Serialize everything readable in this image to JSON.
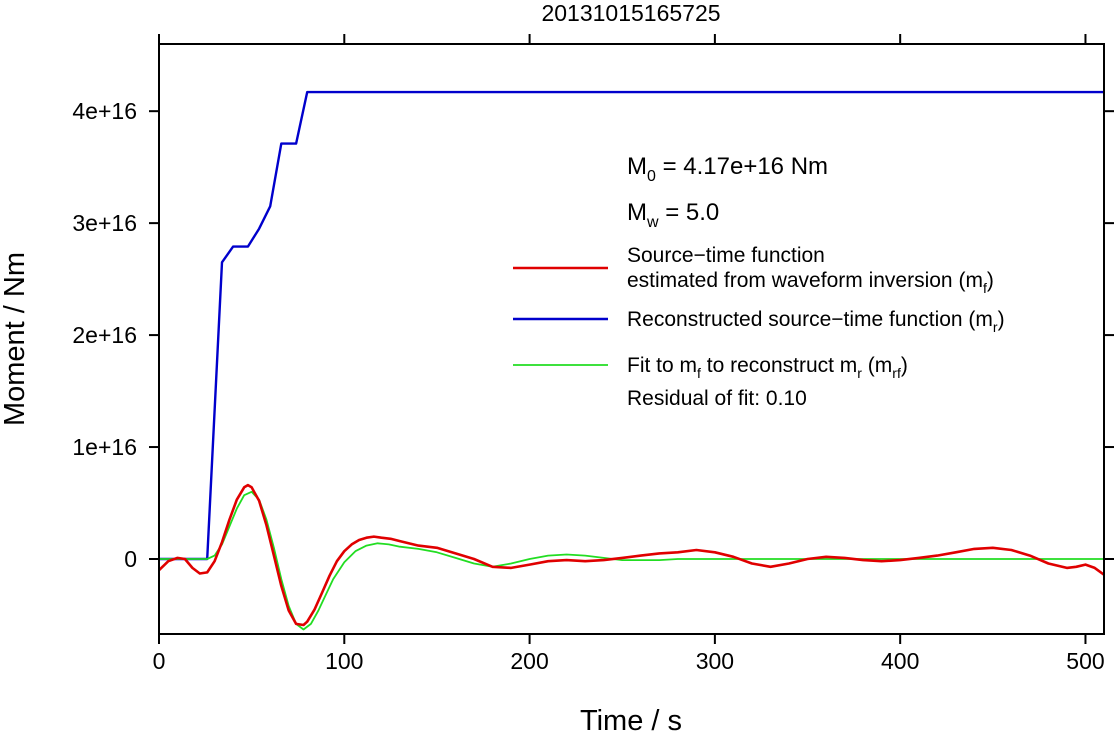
{
  "chart_data": {
    "type": "line",
    "title": "20131015165725",
    "xlabel": "Time / s",
    "ylabel": "Moment / Nm",
    "xlim": [
      0,
      510
    ],
    "ylim": [
      -6700000000000000.0,
      4.6e+16
    ],
    "xticks": [
      0,
      100,
      200,
      300,
      400,
      500
    ],
    "yticks": [
      0,
      1e+16,
      2e+16,
      3e+16,
      4e+16
    ],
    "xtick_labels": [
      "0",
      "100",
      "200",
      "300",
      "400",
      "500"
    ],
    "ytick_labels": [
      "0",
      "1e+16",
      "2e+16",
      "3e+16",
      "4e+16"
    ],
    "grid": false,
    "annotations": {
      "m0": {
        "prefix": "M",
        "sub": "0",
        "rest": " = 4.17e+16 Nm"
      },
      "mw": {
        "prefix": "M",
        "sub": "w",
        "rest": " = 5.0"
      },
      "residual": "Residual of fit: 0.10"
    },
    "series": [
      {
        "name": "Source−time function estimated from waveform inversion (mf)",
        "legend_lines": [
          [
            {
              "t": "Source−time function"
            }
          ],
          [
            {
              "t": "estimated from waveform inversion (m"
            },
            {
              "t": "f",
              "sub": true
            },
            {
              "t": ")"
            }
          ]
        ],
        "color": "#e00000",
        "stroke_width": 2.6,
        "x": [
          0,
          5,
          10,
          14,
          18,
          22,
          26,
          30,
          34,
          38,
          42,
          46,
          48,
          50,
          54,
          58,
          62,
          66,
          70,
          74,
          78,
          80,
          84,
          88,
          92,
          96,
          100,
          104,
          108,
          112,
          116,
          120,
          125,
          130,
          140,
          150,
          160,
          170,
          180,
          190,
          200,
          210,
          220,
          230,
          240,
          250,
          260,
          270,
          280,
          290,
          300,
          310,
          320,
          330,
          340,
          350,
          360,
          370,
          380,
          390,
          400,
          410,
          420,
          430,
          440,
          450,
          460,
          470,
          480,
          490,
          495,
          500,
          505,
          510
        ],
        "y": [
          -1000000000000000.0,
          -200000000000000.0,
          100000000000000.0,
          0,
          -800000000000000.0,
          -1300000000000000.0,
          -1200000000000000.0,
          -200000000000000.0,
          1500000000000000.0,
          3500000000000000.0,
          5300000000000000.0,
          6400000000000000.0,
          6600000000000000.0,
          6400000000000000.0,
          5200000000000000.0,
          3000000000000000.0,
          300000000000000.0,
          -2400000000000000.0,
          -4600000000000000.0,
          -5800000000000000.0,
          -5900000000000000.0,
          -5600000000000000.0,
          -4500000000000000.0,
          -3000000000000000.0,
          -1500000000000000.0,
          -200000000000000.0,
          700000000000000.0,
          1300000000000000.0,
          1700000000000000.0,
          1900000000000000.0,
          2000000000000000.0,
          1900000000000000.0,
          1800000000000000.0,
          1600000000000000.0,
          1200000000000000.0,
          1000000000000000.0,
          500000000000000.0,
          0,
          -700000000000000.0,
          -800000000000000.0,
          -500000000000000.0,
          -200000000000000.0,
          -100000000000000.0,
          -200000000000000.0,
          -100000000000000.0,
          100000000000000.0,
          300000000000000.0,
          500000000000000.0,
          600000000000000.0,
          800000000000000.0,
          600000000000000.0,
          200000000000000.0,
          -400000000000000.0,
          -700000000000000.0,
          -400000000000000.0,
          0,
          200000000000000.0,
          100000000000000.0,
          -100000000000000.0,
          -200000000000000.0,
          -100000000000000.0,
          100000000000000.0,
          300000000000000.0,
          600000000000000.0,
          900000000000000.0,
          1000000000000000.0,
          800000000000000.0,
          300000000000000.0,
          -400000000000000.0,
          -800000000000000.0,
          -700000000000000.0,
          -500000000000000.0,
          -800000000000000.0,
          -1400000000000000.0
        ]
      },
      {
        "name": "Reconstructed source−time function (mr)",
        "legend_lines": [
          [
            {
              "t": "Reconstructed source−time function (m"
            },
            {
              "t": "r",
              "sub": true
            },
            {
              "t": ")"
            }
          ]
        ],
        "color": "#0000cc",
        "stroke_width": 2.4,
        "x": [
          0,
          26,
          34,
          40,
          48,
          54,
          60,
          66,
          74,
          80,
          510
        ],
        "y": [
          0,
          0,
          2.65e+16,
          2.79e+16,
          2.79e+16,
          2.95e+16,
          3.15e+16,
          3.71e+16,
          3.71e+16,
          4.17e+16,
          4.17e+16
        ]
      },
      {
        "name": "Fit to mf to reconstruct mr (mrf)",
        "legend_lines": [
          [
            {
              "t": "Fit to m"
            },
            {
              "t": "f",
              "sub": true
            },
            {
              "t": " to reconstruct m"
            },
            {
              "t": "r",
              "sub": true
            },
            {
              "t": " (m"
            },
            {
              "t": "rf",
              "sub": true
            },
            {
              "t": ")"
            }
          ]
        ],
        "color": "#22dd22",
        "stroke_width": 1.8,
        "x": [
          0,
          26,
          30,
          34,
          38,
          42,
          46,
          50,
          54,
          58,
          62,
          66,
          70,
          74,
          78,
          82,
          86,
          90,
          94,
          100,
          106,
          112,
          118,
          124,
          130,
          140,
          150,
          160,
          170,
          180,
          190,
          200,
          210,
          220,
          230,
          240,
          250,
          260,
          270,
          280,
          300,
          320,
          340,
          360,
          380,
          400,
          420,
          440,
          460,
          480,
          500,
          510
        ],
        "y": [
          0,
          0,
          300000000000000.0,
          1300000000000000.0,
          2900000000000000.0,
          4500000000000000.0,
          5700000000000000.0,
          6000000000000000.0,
          5300000000000000.0,
          3500000000000000.0,
          1000000000000000.0,
          -1800000000000000.0,
          -4200000000000000.0,
          -5800000000000000.0,
          -6300000000000000.0,
          -5800000000000000.0,
          -4600000000000000.0,
          -3200000000000000.0,
          -1800000000000000.0,
          -300000000000000.0,
          700000000000000.0,
          1200000000000000.0,
          1400000000000000.0,
          1300000000000000.0,
          1100000000000000.0,
          900000000000000.0,
          600000000000000.0,
          100000000000000.0,
          -400000000000000.0,
          -700000000000000.0,
          -400000000000000.0,
          0,
          300000000000000.0,
          400000000000000.0,
          300000000000000.0,
          100000000000000.0,
          -100000000000000.0,
          -100000000000000.0,
          -100000000000000.0,
          0,
          0,
          0,
          0,
          0,
          0,
          0,
          0,
          0,
          0,
          0,
          0,
          0
        ]
      }
    ]
  }
}
